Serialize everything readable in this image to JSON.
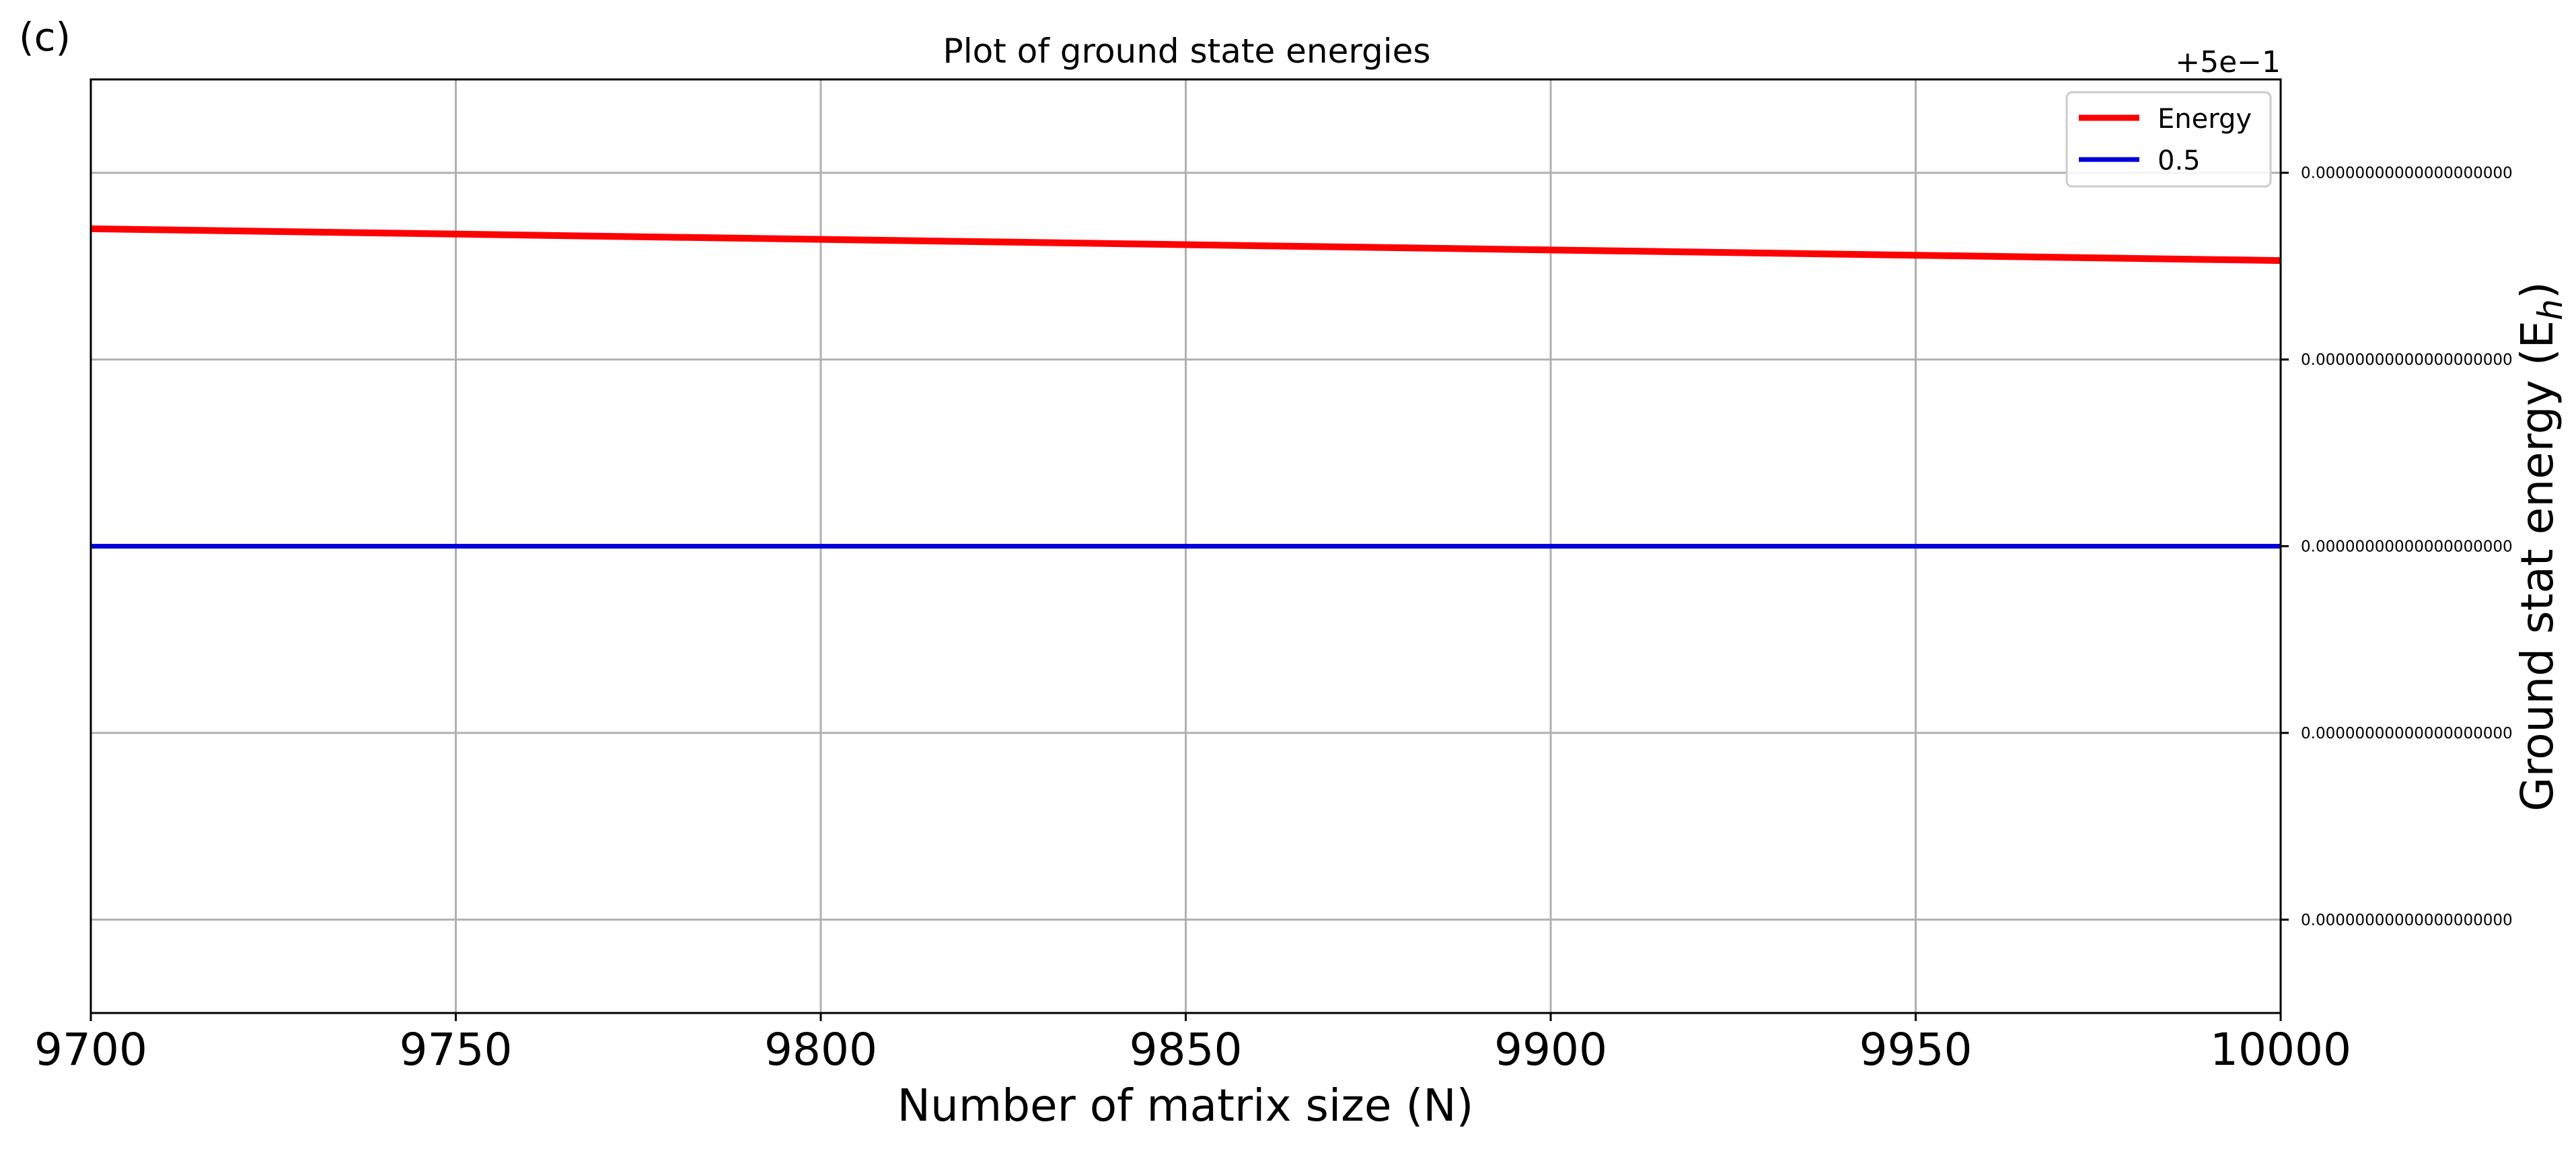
{
  "panel_label": "(c)",
  "colors": {
    "energy": "#ff0000",
    "half": "#0000dd",
    "grid": "#b0b0b0",
    "axis": "#000000",
    "legend_border": "#cccccc"
  },
  "chart_data": {
    "type": "line",
    "title": "Plot of ground state energies",
    "xlabel": "Number of matrix size (N)",
    "ylabel": "Ground stat energy (E",
    "ylabel_sub": "h",
    "ylabel_close": ")",
    "offset_text": "+5e−1",
    "xlim": [
      9700,
      10000
    ],
    "x_ticks": [
      9700,
      9750,
      9800,
      9850,
      9900,
      9950,
      10000
    ],
    "x_tick_labels": [
      "9700",
      "9750",
      "9800",
      "9850",
      "9900",
      "9950",
      "10000"
    ],
    "ylim": [
      -2.5,
      2.5
    ],
    "y_ticks": [
      -2,
      -1,
      0,
      1,
      2
    ],
    "y_tick_labels": [
      "0.00000000000000000000",
      "0.00000000000000000000",
      "0.00000000000000000000",
      "0.00000000000000000000",
      "0.00000000000000000000"
    ],
    "y_axis_side": "right",
    "grid": true,
    "legend_position": "top-right",
    "series": [
      {
        "name": "Energy",
        "color": "#ff0000",
        "x": [
          9700,
          10000
        ],
        "y": [
          1.7,
          1.53
        ]
      },
      {
        "name": "0.5",
        "color": "#0000dd",
        "x": [
          9700,
          10000
        ],
        "y": [
          0,
          0
        ]
      }
    ]
  }
}
